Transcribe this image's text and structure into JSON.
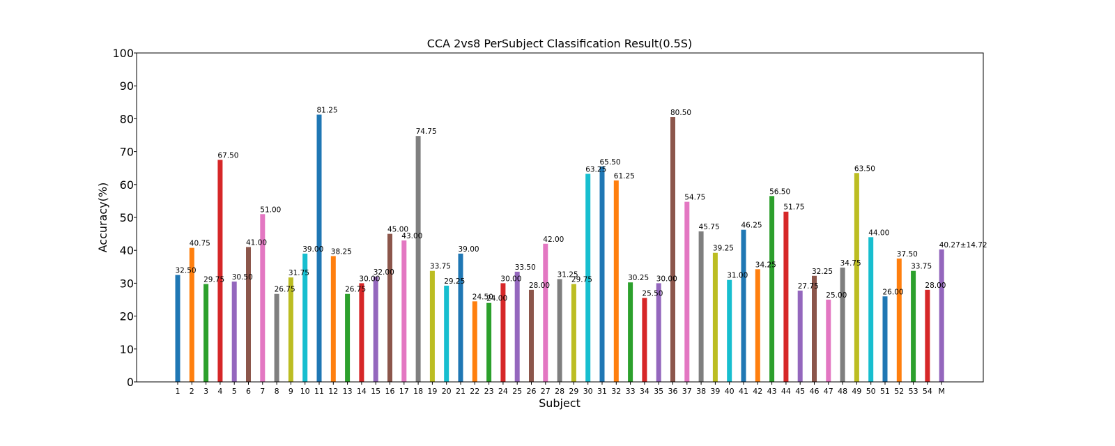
{
  "chart_data": {
    "type": "bar",
    "title": "CCA 2vs8 PerSubject Classification Result(0.5S)",
    "xlabel": "Subject",
    "ylabel": "Accuracy(%)",
    "ylim": [
      0,
      100
    ],
    "yticks": [
      0,
      10,
      20,
      30,
      40,
      50,
      60,
      70,
      80,
      90,
      100
    ],
    "grid": false,
    "categories": [
      "1",
      "2",
      "3",
      "4",
      "5",
      "6",
      "7",
      "8",
      "9",
      "10",
      "11",
      "12",
      "13",
      "14",
      "15",
      "16",
      "17",
      "18",
      "19",
      "20",
      "21",
      "22",
      "23",
      "24",
      "25",
      "26",
      "27",
      "28",
      "29",
      "30",
      "31",
      "32",
      "33",
      "34",
      "35",
      "36",
      "37",
      "38",
      "39",
      "40",
      "41",
      "42",
      "43",
      "44",
      "45",
      "46",
      "47",
      "48",
      "49",
      "50",
      "51",
      "52",
      "53",
      "54",
      "M"
    ],
    "values": [
      32.5,
      40.75,
      29.75,
      67.5,
      30.5,
      41.0,
      51.0,
      26.75,
      31.75,
      39.0,
      81.25,
      38.25,
      26.75,
      30.0,
      32.0,
      45.0,
      43.0,
      74.75,
      33.75,
      29.25,
      39.0,
      24.5,
      24.0,
      30.0,
      33.5,
      28.0,
      42.0,
      31.25,
      29.75,
      63.25,
      65.5,
      61.25,
      30.25,
      25.5,
      30.0,
      80.5,
      54.75,
      45.75,
      39.25,
      31.0,
      46.25,
      34.25,
      56.5,
      51.75,
      27.75,
      32.25,
      25.0,
      34.75,
      63.5,
      44.0,
      26.0,
      37.5,
      33.75,
      28.0,
      40.27
    ],
    "data_labels": [
      "32.50",
      "40.75",
      "29.75",
      "67.50",
      "30.50",
      "41.00",
      "51.00",
      "26.75",
      "31.75",
      "39.00",
      "81.25",
      "38.25",
      "26.75",
      "30.00",
      "32.00",
      "45.00",
      "43.00",
      "74.75",
      "33.75",
      "29.25",
      "39.00",
      "24.50",
      "24.00",
      "30.00",
      "33.50",
      "28.00",
      "42.00",
      "31.25",
      "29.75",
      "63.25",
      "65.50",
      "61.25",
      "30.25",
      "25.50",
      "30.00",
      "80.50",
      "54.75",
      "45.75",
      "39.25",
      "31.00",
      "46.25",
      "34.25",
      "56.50",
      "51.75",
      "27.75",
      "32.25",
      "25.00",
      "34.75",
      "63.50",
      "44.00",
      "26.00",
      "37.50",
      "33.75",
      "28.00",
      "40.27±14.72"
    ],
    "palette": [
      "#1f77b4",
      "#ff7f0e",
      "#2ca02c",
      "#d62728",
      "#9467bd",
      "#8c564b",
      "#e377c2",
      "#7f7f7f",
      "#bcbd22",
      "#17becf"
    ],
    "mean_label_color": "#ff0000"
  }
}
